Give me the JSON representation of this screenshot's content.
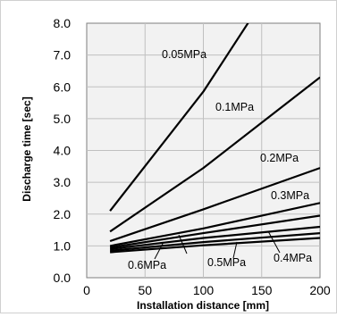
{
  "chart_data": {
    "type": "line",
    "title": "",
    "xlabel": "Installation distance [mm]",
    "ylabel": "Discharge time [sec]",
    "xlim": [
      0,
      200
    ],
    "ylim": [
      0,
      8
    ],
    "x_ticks": [
      0,
      50,
      100,
      150,
      200
    ],
    "y_ticks": [
      "0.0",
      "1.0",
      "2.0",
      "3.0",
      "4.0",
      "5.0",
      "6.0",
      "7.0",
      "8.0"
    ],
    "grid": true,
    "legend": "none",
    "line_color": "#000000",
    "grid_color": "#c0c0c0",
    "plot_background": "#f2f2f2",
    "series": [
      {
        "name": "0.05MPa",
        "x": [
          20,
          100,
          140
        ],
        "y": [
          2.1,
          5.85,
          8.1
        ]
      },
      {
        "name": "0.1MPa",
        "x": [
          20,
          100,
          200
        ],
        "y": [
          1.45,
          3.45,
          6.3
        ]
      },
      {
        "name": "0.2MPa",
        "x": [
          20,
          100,
          200
        ],
        "y": [
          1.15,
          2.15,
          3.45
        ]
      },
      {
        "name": "0.3MPa",
        "x": [
          20,
          100,
          200
        ],
        "y": [
          1.0,
          1.55,
          2.35
        ]
      },
      {
        "name": "",
        "x": [
          20,
          100,
          200
        ],
        "y": [
          0.95,
          1.4,
          1.95
        ]
      },
      {
        "name": "0.4MPa",
        "x": [
          20,
          100,
          200
        ],
        "y": [
          0.9,
          1.25,
          1.6
        ]
      },
      {
        "name": "0.5MPa",
        "x": [
          20,
          100,
          200
        ],
        "y": [
          0.85,
          1.12,
          1.4
        ]
      },
      {
        "name": "0.6MPa",
        "x": [
          20,
          100,
          200
        ],
        "y": [
          0.8,
          1.02,
          1.25
        ]
      }
    ]
  }
}
